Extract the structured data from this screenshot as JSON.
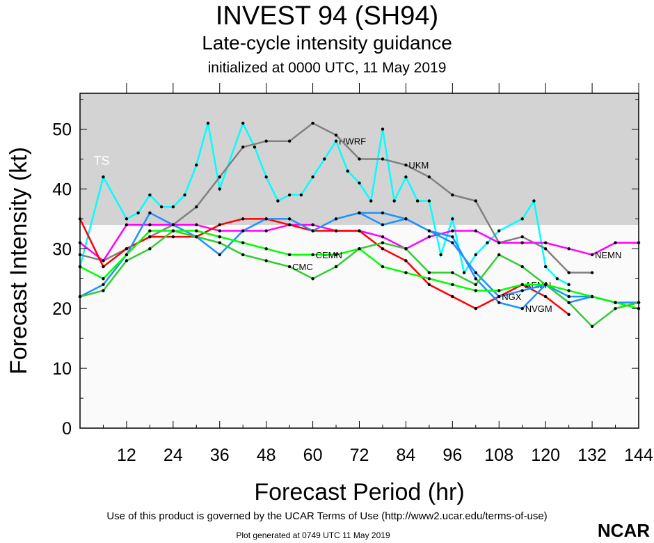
{
  "header": {
    "title": "INVEST 94 (SH94)",
    "subtitle": "Late-cycle intensity guidance",
    "init": "initialized at 0000 UTC, 11 May 2019"
  },
  "footer": {
    "terms": "Use of this product is governed by the UCAR Terms of Use (http://www2.ucar.edu/terms-of-use)",
    "generated": "Plot generated at 0749 UTC   11 May 2019",
    "logo": "NCAR"
  },
  "chart_data": {
    "type": "line",
    "xlabel": "Forecast Period (hr)",
    "ylabel": "Forecast Intensity (kt)",
    "xlim": [
      0,
      144
    ],
    "ylim": [
      0,
      56
    ],
    "xticks": [
      12,
      24,
      36,
      48,
      60,
      72,
      84,
      96,
      108,
      120,
      132,
      144
    ],
    "yticks": [
      0,
      10,
      20,
      30,
      40,
      50
    ],
    "band": {
      "label": "TS",
      "from": 34,
      "to": 56,
      "color": "#d3d3d3"
    },
    "series": [
      {
        "name": "HWRF",
        "color": "#00ffff",
        "points": [
          [
            0,
            27
          ],
          [
            6,
            42
          ],
          [
            12,
            35
          ],
          [
            15,
            36
          ],
          [
            18,
            39
          ],
          [
            21,
            37
          ],
          [
            24,
            37
          ],
          [
            27,
            39
          ],
          [
            30,
            44
          ],
          [
            33,
            51
          ],
          [
            36,
            40
          ],
          [
            42,
            51
          ],
          [
            45,
            47
          ],
          [
            48,
            42
          ],
          [
            51,
            38
          ],
          [
            54,
            39
          ],
          [
            57,
            39
          ],
          [
            60,
            42
          ],
          [
            63,
            45
          ],
          [
            66,
            48
          ],
          [
            69,
            43
          ],
          [
            72,
            41
          ],
          [
            75,
            38
          ],
          [
            78,
            50
          ],
          [
            81,
            38
          ],
          [
            84,
            42
          ],
          [
            87,
            38
          ],
          [
            90,
            38
          ],
          [
            93,
            29
          ],
          [
            96,
            35
          ],
          [
            99,
            26
          ],
          [
            102,
            29
          ],
          [
            105,
            31
          ],
          [
            108,
            33
          ],
          [
            114,
            35
          ],
          [
            117,
            38
          ],
          [
            120,
            27
          ],
          [
            123,
            25
          ],
          [
            126,
            24
          ]
        ]
      },
      {
        "name": "UKM",
        "color": "#808080",
        "points": [
          [
            0,
            29
          ],
          [
            6,
            28
          ],
          [
            12,
            30
          ],
          [
            18,
            32
          ],
          [
            24,
            34
          ],
          [
            30,
            37
          ],
          [
            36,
            42
          ],
          [
            42,
            47
          ],
          [
            48,
            48
          ],
          [
            54,
            48
          ],
          [
            60,
            51
          ],
          [
            66,
            49
          ],
          [
            72,
            45
          ],
          [
            78,
            45
          ],
          [
            84,
            44
          ],
          [
            90,
            42
          ],
          [
            96,
            39
          ],
          [
            102,
            38
          ],
          [
            108,
            31
          ],
          [
            114,
            32
          ],
          [
            120,
            30
          ],
          [
            126,
            26
          ],
          [
            132,
            26
          ]
        ]
      },
      {
        "name": "NEMN",
        "color": "#ff00ff",
        "points": [
          [
            0,
            31
          ],
          [
            6,
            28
          ],
          [
            12,
            34
          ],
          [
            18,
            34
          ],
          [
            24,
            34
          ],
          [
            30,
            34
          ],
          [
            36,
            33
          ],
          [
            42,
            33
          ],
          [
            48,
            33
          ],
          [
            54,
            34
          ],
          [
            60,
            34
          ],
          [
            66,
            33
          ],
          [
            72,
            33
          ],
          [
            78,
            32
          ],
          [
            84,
            30
          ],
          [
            90,
            32
          ],
          [
            96,
            33
          ],
          [
            102,
            33
          ],
          [
            108,
            31
          ],
          [
            114,
            31
          ],
          [
            120,
            31
          ],
          [
            126,
            30
          ],
          [
            132,
            29
          ],
          [
            138,
            31
          ],
          [
            144,
            31
          ]
        ]
      },
      {
        "name": "AEMN",
        "color": "#ff0000",
        "points": [
          [
            0,
            35
          ],
          [
            6,
            27
          ],
          [
            12,
            30
          ],
          [
            18,
            32
          ],
          [
            24,
            32
          ],
          [
            30,
            32
          ],
          [
            36,
            34
          ],
          [
            42,
            35
          ],
          [
            48,
            35
          ],
          [
            54,
            34
          ],
          [
            60,
            33
          ],
          [
            66,
            33
          ],
          [
            72,
            33
          ],
          [
            78,
            30
          ],
          [
            84,
            28
          ],
          [
            90,
            24
          ],
          [
            96,
            22
          ],
          [
            102,
            20
          ],
          [
            108,
            22
          ],
          [
            114,
            24
          ],
          [
            120,
            22
          ],
          [
            126,
            19
          ]
        ]
      },
      {
        "name": "NVGM",
        "color": "#1e90ff",
        "points": [
          [
            0,
            22
          ],
          [
            6,
            24
          ],
          [
            12,
            29
          ],
          [
            18,
            36
          ],
          [
            24,
            34
          ],
          [
            30,
            32
          ],
          [
            36,
            29
          ],
          [
            42,
            33
          ],
          [
            48,
            35
          ],
          [
            54,
            35
          ],
          [
            60,
            33
          ],
          [
            66,
            35
          ],
          [
            72,
            36
          ],
          [
            78,
            34
          ],
          [
            84,
            35
          ],
          [
            90,
            33
          ],
          [
            96,
            32
          ],
          [
            102,
            25
          ],
          [
            108,
            21
          ],
          [
            114,
            20
          ],
          [
            120,
            24
          ],
          [
            126,
            21
          ],
          [
            132,
            22
          ],
          [
            138,
            21
          ],
          [
            144,
            21
          ]
        ]
      },
      {
        "name": "NGX",
        "color": "#1e90ff",
        "points": [
          [
            72,
            36
          ],
          [
            78,
            36
          ],
          [
            84,
            35
          ],
          [
            90,
            33
          ],
          [
            96,
            31
          ],
          [
            102,
            26
          ],
          [
            108,
            22
          ],
          [
            114,
            23
          ],
          [
            120,
            24
          ],
          [
            126,
            22
          ],
          [
            132,
            22
          ],
          [
            138,
            21
          ],
          [
            144,
            21
          ]
        ]
      },
      {
        "name": "CEMN",
        "color": "#00ff00",
        "points": [
          [
            0,
            27
          ],
          [
            6,
            25
          ],
          [
            12,
            29
          ],
          [
            18,
            33
          ],
          [
            24,
            33
          ],
          [
            30,
            33
          ],
          [
            36,
            32
          ],
          [
            42,
            31
          ],
          [
            48,
            30
          ],
          [
            54,
            29
          ],
          [
            60,
            29
          ],
          [
            66,
            29
          ],
          [
            72,
            30
          ],
          [
            78,
            27
          ],
          [
            84,
            26
          ],
          [
            90,
            25
          ],
          [
            96,
            24
          ],
          [
            102,
            23
          ],
          [
            108,
            23
          ],
          [
            114,
            24
          ],
          [
            120,
            24
          ],
          [
            126,
            23
          ],
          [
            132,
            22
          ],
          [
            138,
            21
          ],
          [
            144,
            20
          ]
        ]
      },
      {
        "name": "CMC",
        "color": "#32cd32",
        "points": [
          [
            0,
            22
          ],
          [
            6,
            23
          ],
          [
            12,
            28
          ],
          [
            18,
            30
          ],
          [
            24,
            33
          ],
          [
            30,
            32
          ],
          [
            36,
            31
          ],
          [
            42,
            29
          ],
          [
            48,
            28
          ],
          [
            54,
            27
          ],
          [
            60,
            25
          ],
          [
            66,
            27
          ],
          [
            72,
            30
          ],
          [
            78,
            31
          ],
          [
            84,
            30
          ],
          [
            90,
            26
          ],
          [
            96,
            26
          ],
          [
            102,
            24
          ],
          [
            108,
            29
          ],
          [
            114,
            27
          ],
          [
            120,
            24
          ],
          [
            126,
            21
          ],
          [
            132,
            17
          ],
          [
            138,
            20
          ],
          [
            144,
            21
          ]
        ]
      }
    ]
  }
}
